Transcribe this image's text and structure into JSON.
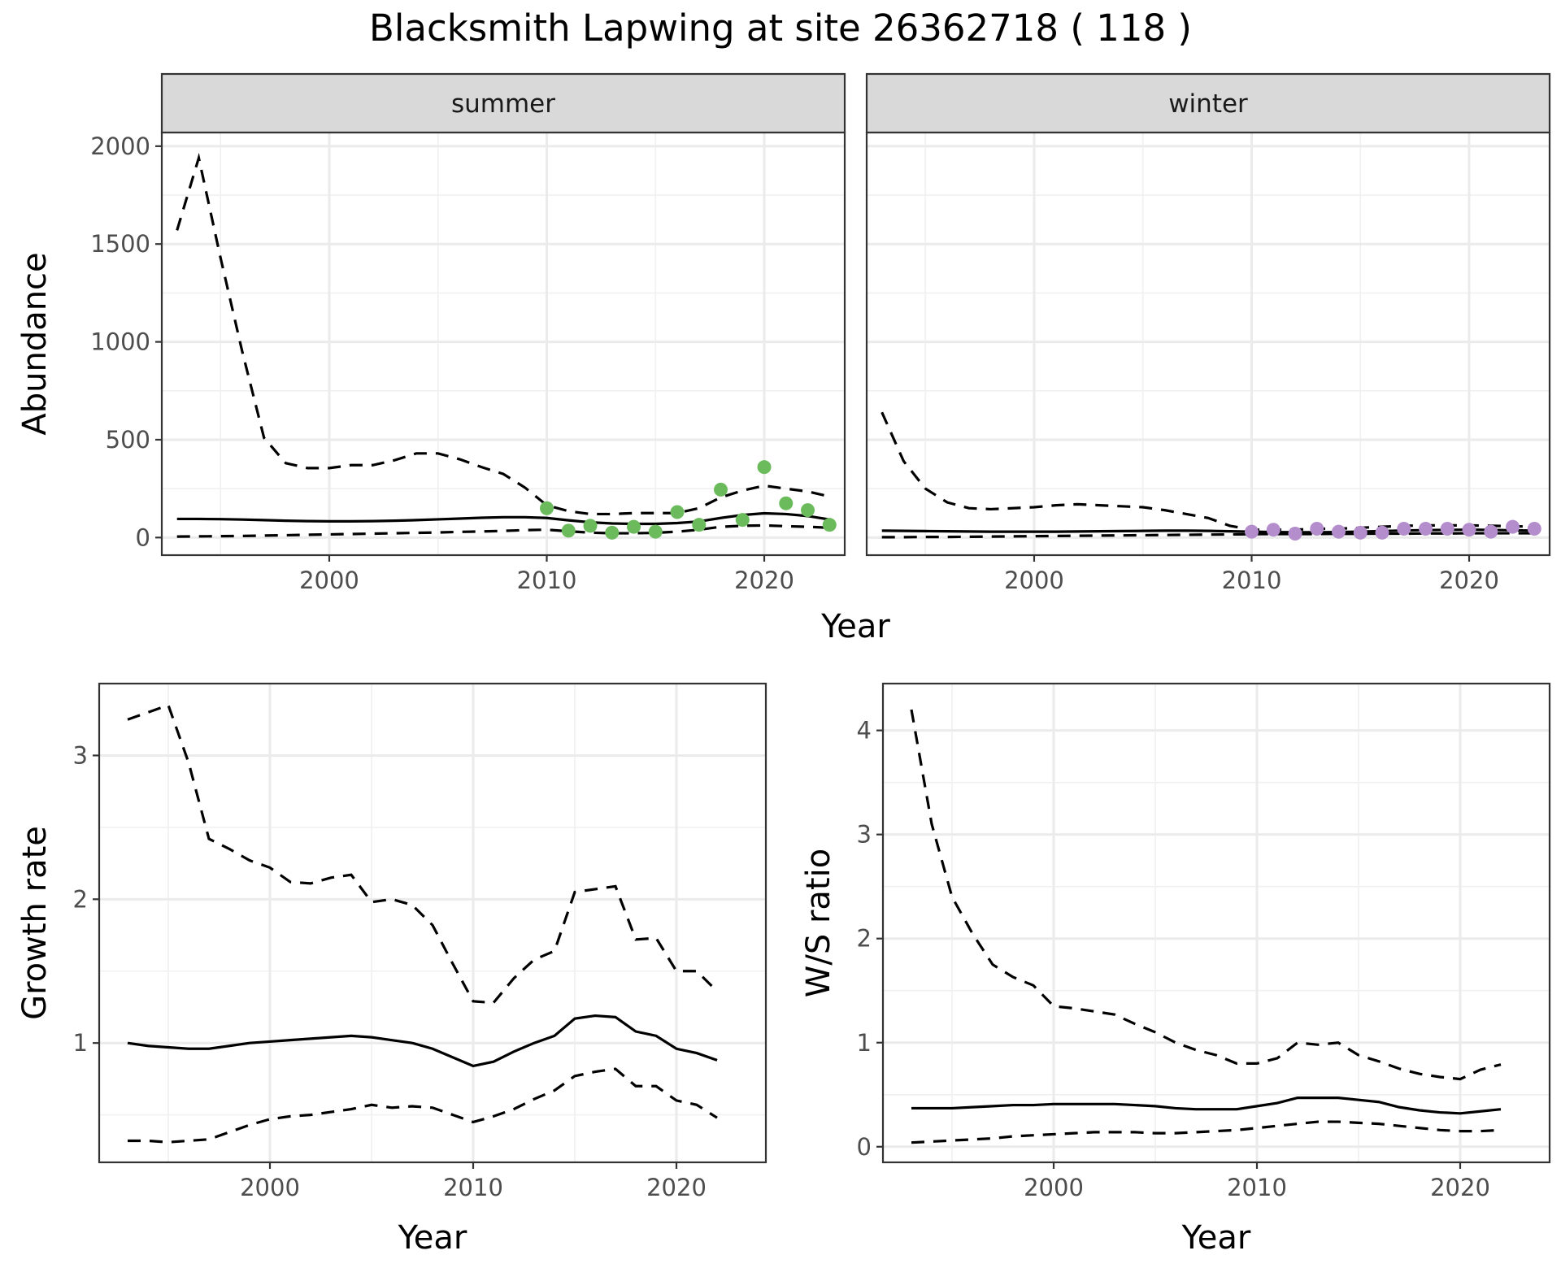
{
  "title": "Blacksmith Lapwing at site 26362718 ( 118 )",
  "colors": {
    "summer_points": "#6BBB5C",
    "winter_points": "#B48ECC",
    "line": "#000000",
    "strip_bg": "#D9D9D9"
  },
  "chart_data": [
    {
      "id": "abundance",
      "type": "line",
      "facets": [
        "summer",
        "winter"
      ],
      "xlabel": "Year",
      "ylabel": "Abundance",
      "xlim": [
        1992.3,
        2023.7
      ],
      "ylim": [
        -90,
        2070
      ],
      "x_ticks": [
        2000,
        2010,
        2020
      ],
      "y_ticks": [
        0,
        500,
        1000,
        1500,
        2000
      ],
      "x_tick_labels": [
        "2000",
        "2010",
        "2020"
      ],
      "y_tick_labels": [
        "0",
        "500",
        "1000",
        "1500",
        "2000"
      ],
      "panels": [
        {
          "facet": "summer",
          "years": [
            1993,
            1994,
            1995,
            1996,
            1997,
            1998,
            1999,
            2000,
            2001,
            2002,
            2003,
            2004,
            2005,
            2006,
            2007,
            2008,
            2009,
            2010,
            2011,
            2012,
            2013,
            2014,
            2015,
            2016,
            2017,
            2018,
            2019,
            2020,
            2021,
            2022,
            2023
          ],
          "mean": [
            95,
            95,
            94,
            92,
            89,
            86,
            84,
            83,
            83,
            84,
            86,
            89,
            93,
            97,
            101,
            104,
            104,
            100,
            88,
            78,
            72,
            70,
            70,
            74,
            82,
            100,
            115,
            124,
            120,
            110,
            92
          ],
          "upper": [
            1570,
            1940,
            1430,
            950,
            510,
            380,
            355,
            355,
            370,
            370,
            395,
            430,
            430,
            400,
            360,
            325,
            255,
            165,
            135,
            120,
            120,
            125,
            125,
            125,
            150,
            205,
            240,
            265,
            250,
            235,
            210
          ],
          "lower": [
            5,
            6,
            7,
            8,
            10,
            12,
            14,
            16,
            18,
            20,
            22,
            24,
            26,
            29,
            31,
            34,
            38,
            40,
            32,
            25,
            22,
            22,
            24,
            30,
            40,
            55,
            60,
            62,
            58,
            55,
            50
          ],
          "points_x": [
            2010,
            2011,
            2012,
            2013,
            2014,
            2015,
            2016,
            2017,
            2018,
            2019,
            2020,
            2021,
            2022,
            2023
          ],
          "points_y": [
            150,
            35,
            60,
            25,
            55,
            30,
            130,
            65,
            245,
            90,
            360,
            175,
            140,
            65
          ]
        },
        {
          "facet": "winter",
          "years": [
            1993,
            1994,
            1995,
            1996,
            1997,
            1998,
            1999,
            2000,
            2001,
            2002,
            2003,
            2004,
            2005,
            2006,
            2007,
            2008,
            2009,
            2010,
            2011,
            2012,
            2013,
            2014,
            2015,
            2016,
            2017,
            2018,
            2019,
            2020,
            2021,
            2022,
            2023
          ],
          "mean": [
            35,
            34,
            33,
            32,
            31,
            30,
            30,
            30,
            30,
            31,
            32,
            33,
            34,
            35,
            35,
            34,
            32,
            30,
            28,
            27,
            27,
            28,
            30,
            33,
            36,
            38,
            39,
            40,
            39,
            37,
            35
          ],
          "upper": [
            640,
            390,
            250,
            180,
            150,
            145,
            150,
            155,
            165,
            170,
            165,
            160,
            155,
            140,
            120,
            100,
            60,
            40,
            40,
            40,
            45,
            45,
            50,
            55,
            60,
            62,
            62,
            62,
            60,
            58,
            55
          ],
          "lower": [
            2,
            2,
            3,
            3,
            4,
            5,
            6,
            7,
            8,
            9,
            10,
            11,
            12,
            13,
            14,
            15,
            16,
            17,
            18,
            18,
            18,
            19,
            19,
            20,
            20,
            21,
            21,
            22,
            22,
            22,
            22
          ],
          "points_x": [
            2010,
            2011,
            2012,
            2013,
            2014,
            2015,
            2016,
            2017,
            2018,
            2019,
            2020,
            2021,
            2022,
            2023
          ],
          "points_y": [
            30,
            40,
            20,
            45,
            30,
            25,
            25,
            45,
            45,
            45,
            40,
            30,
            55,
            45
          ]
        }
      ]
    },
    {
      "id": "growth",
      "type": "line",
      "xlabel": "Year",
      "ylabel": "Growth rate",
      "xlim": [
        1991.6,
        2024.4
      ],
      "ylim": [
        0.17,
        3.5
      ],
      "x_ticks": [
        2000,
        2010,
        2020
      ],
      "y_ticks": [
        1,
        2,
        3
      ],
      "x_tick_labels": [
        "2000",
        "2010",
        "2020"
      ],
      "y_tick_labels": [
        "1",
        "2",
        "3"
      ],
      "years": [
        1993,
        1994,
        1995,
        1996,
        1997,
        1998,
        1999,
        2000,
        2001,
        2002,
        2003,
        2004,
        2005,
        2006,
        2007,
        2008,
        2009,
        2010,
        2011,
        2012,
        2013,
        2014,
        2015,
        2016,
        2017,
        2018,
        2019,
        2020,
        2021,
        2022
      ],
      "mean": [
        1.0,
        0.98,
        0.97,
        0.96,
        0.96,
        0.98,
        1.0,
        1.01,
        1.02,
        1.03,
        1.04,
        1.05,
        1.04,
        1.02,
        1.0,
        0.96,
        0.9,
        0.84,
        0.87,
        0.94,
        1.0,
        1.05,
        1.17,
        1.19,
        1.18,
        1.08,
        1.05,
        0.96,
        0.93,
        0.88
      ],
      "upper": [
        3.25,
        3.3,
        3.35,
        2.95,
        2.42,
        2.35,
        2.27,
        2.22,
        2.12,
        2.11,
        2.15,
        2.17,
        1.98,
        2.0,
        1.96,
        1.82,
        1.55,
        1.29,
        1.28,
        1.45,
        1.58,
        1.64,
        2.05,
        2.07,
        2.09,
        1.72,
        1.73,
        1.5,
        1.5,
        1.36
      ],
      "lower": [
        0.32,
        0.32,
        0.31,
        0.32,
        0.33,
        0.38,
        0.43,
        0.47,
        0.49,
        0.5,
        0.52,
        0.54,
        0.57,
        0.55,
        0.56,
        0.55,
        0.5,
        0.45,
        0.49,
        0.54,
        0.61,
        0.67,
        0.77,
        0.8,
        0.82,
        0.7,
        0.7,
        0.6,
        0.57,
        0.48
      ]
    },
    {
      "id": "ws_ratio",
      "type": "line",
      "xlabel": "Year",
      "ylabel": "W/S ratio",
      "xlim": [
        1991.6,
        2024.4
      ],
      "ylim": [
        -0.15,
        4.45
      ],
      "x_ticks": [
        2000,
        2010,
        2020
      ],
      "y_ticks": [
        0,
        1,
        2,
        3,
        4
      ],
      "x_tick_labels": [
        "2000",
        "2010",
        "2020"
      ],
      "y_tick_labels": [
        "0",
        "1",
        "2",
        "3",
        "4"
      ],
      "years": [
        1993,
        1994,
        1995,
        1996,
        1997,
        1998,
        1999,
        2000,
        2001,
        2002,
        2003,
        2004,
        2005,
        2006,
        2007,
        2008,
        2009,
        2010,
        2011,
        2012,
        2013,
        2014,
        2015,
        2016,
        2017,
        2018,
        2019,
        2020,
        2021,
        2022
      ],
      "mean": [
        0.37,
        0.37,
        0.37,
        0.38,
        0.39,
        0.4,
        0.4,
        0.41,
        0.41,
        0.41,
        0.41,
        0.4,
        0.39,
        0.37,
        0.36,
        0.36,
        0.36,
        0.39,
        0.42,
        0.47,
        0.47,
        0.47,
        0.45,
        0.43,
        0.38,
        0.35,
        0.33,
        0.32,
        0.34,
        0.36
      ],
      "upper": [
        4.2,
        3.1,
        2.4,
        2.05,
        1.75,
        1.63,
        1.55,
        1.35,
        1.33,
        1.3,
        1.27,
        1.18,
        1.1,
        1.0,
        0.93,
        0.88,
        0.8,
        0.8,
        0.85,
        1.0,
        0.98,
        1.0,
        0.88,
        0.82,
        0.75,
        0.7,
        0.67,
        0.65,
        0.74,
        0.79
      ],
      "lower": [
        0.04,
        0.05,
        0.06,
        0.07,
        0.08,
        0.1,
        0.11,
        0.12,
        0.13,
        0.14,
        0.14,
        0.14,
        0.13,
        0.13,
        0.14,
        0.15,
        0.16,
        0.18,
        0.2,
        0.22,
        0.24,
        0.24,
        0.23,
        0.22,
        0.2,
        0.18,
        0.16,
        0.15,
        0.15,
        0.16
      ]
    }
  ]
}
